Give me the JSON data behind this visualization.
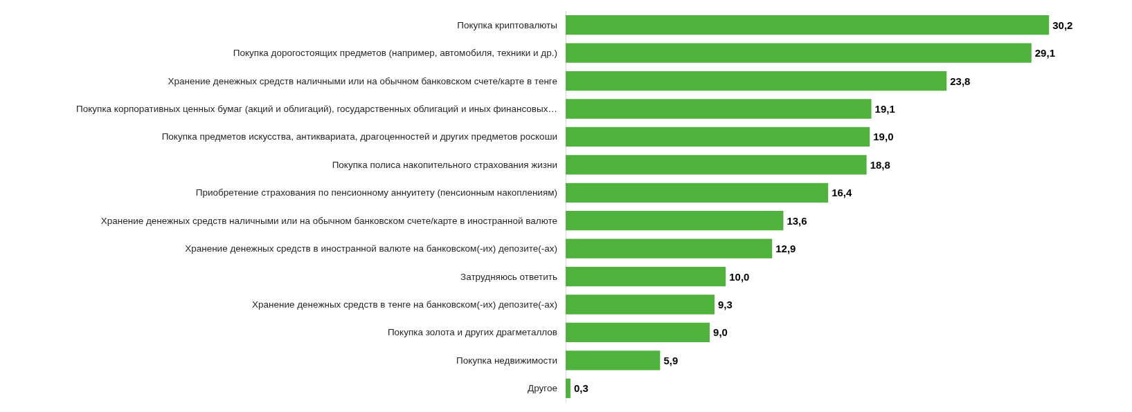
{
  "chart_data": {
    "type": "bar",
    "orientation": "horizontal",
    "color": "#4eb23d",
    "categories": [
      "Покупка криптовалюты",
      "Покупка дорогостоящих предметов (например, автомобиля, техники и др.)",
      "Хранение денежных средств наличными или на обычном банковском счете/карте в тенге",
      "Покупка корпоративных ценных бумаг (акций и облигаций), государственных облигаций и иных финансовых…",
      "Покупка предметов искусства, антиквариата, драгоценностей и других предметов роскоши",
      "Покупка полиса накопительного страхования жизни",
      "Приобретение страхования по пенсионному аннуитету (пенсионным накоплениям)",
      "Хранение денежных средств наличными или на обычном банковском счете/карте в иностранной валюте",
      "Хранение денежных средств в иностранной валюте на банковском(-их) депозите(-ах)",
      "Затрудняюсь ответить",
      "Хранение денежных средств в тенге на банковском(-их) депозите(-ах)",
      "Покупка золота и других драгметаллов",
      "Покупка недвижимости",
      "Другое"
    ],
    "values": [
      30.2,
      29.1,
      23.8,
      19.1,
      19.0,
      18.8,
      16.4,
      13.6,
      12.9,
      10.0,
      9.3,
      9.0,
      5.9,
      0.3
    ],
    "value_labels": [
      "30,2",
      "29,1",
      "23,8",
      "19,1",
      "19,0",
      "18,8",
      "16,4",
      "13,6",
      "12,9",
      "10,0",
      "9,3",
      "9,0",
      "5,9",
      "0,3"
    ]
  }
}
